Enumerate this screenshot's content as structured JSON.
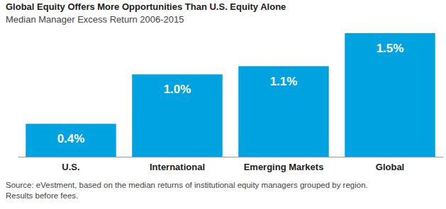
{
  "chart_data": {
    "type": "bar",
    "title": "Global Equity Offers More Opportunities Than U.S. Equity Alone",
    "subtitle": "Median Manager Excess Return 2006-2015",
    "categories": [
      "U.S.",
      "International",
      "Emerging Markets",
      "Global"
    ],
    "values": [
      0.4,
      1.0,
      1.1,
      1.5
    ],
    "value_labels": [
      "0.4%",
      "1.0%",
      "1.1%",
      "1.5%"
    ],
    "color": "#00a3e0",
    "ylim": [
      0,
      1.5
    ],
    "data_labels": true,
    "tick_labels": "x",
    "grid": false,
    "notes": [
      "Source: eVestment, based on the median returns of institutional equity managers grouped by region.",
      "Results before fees."
    ]
  }
}
